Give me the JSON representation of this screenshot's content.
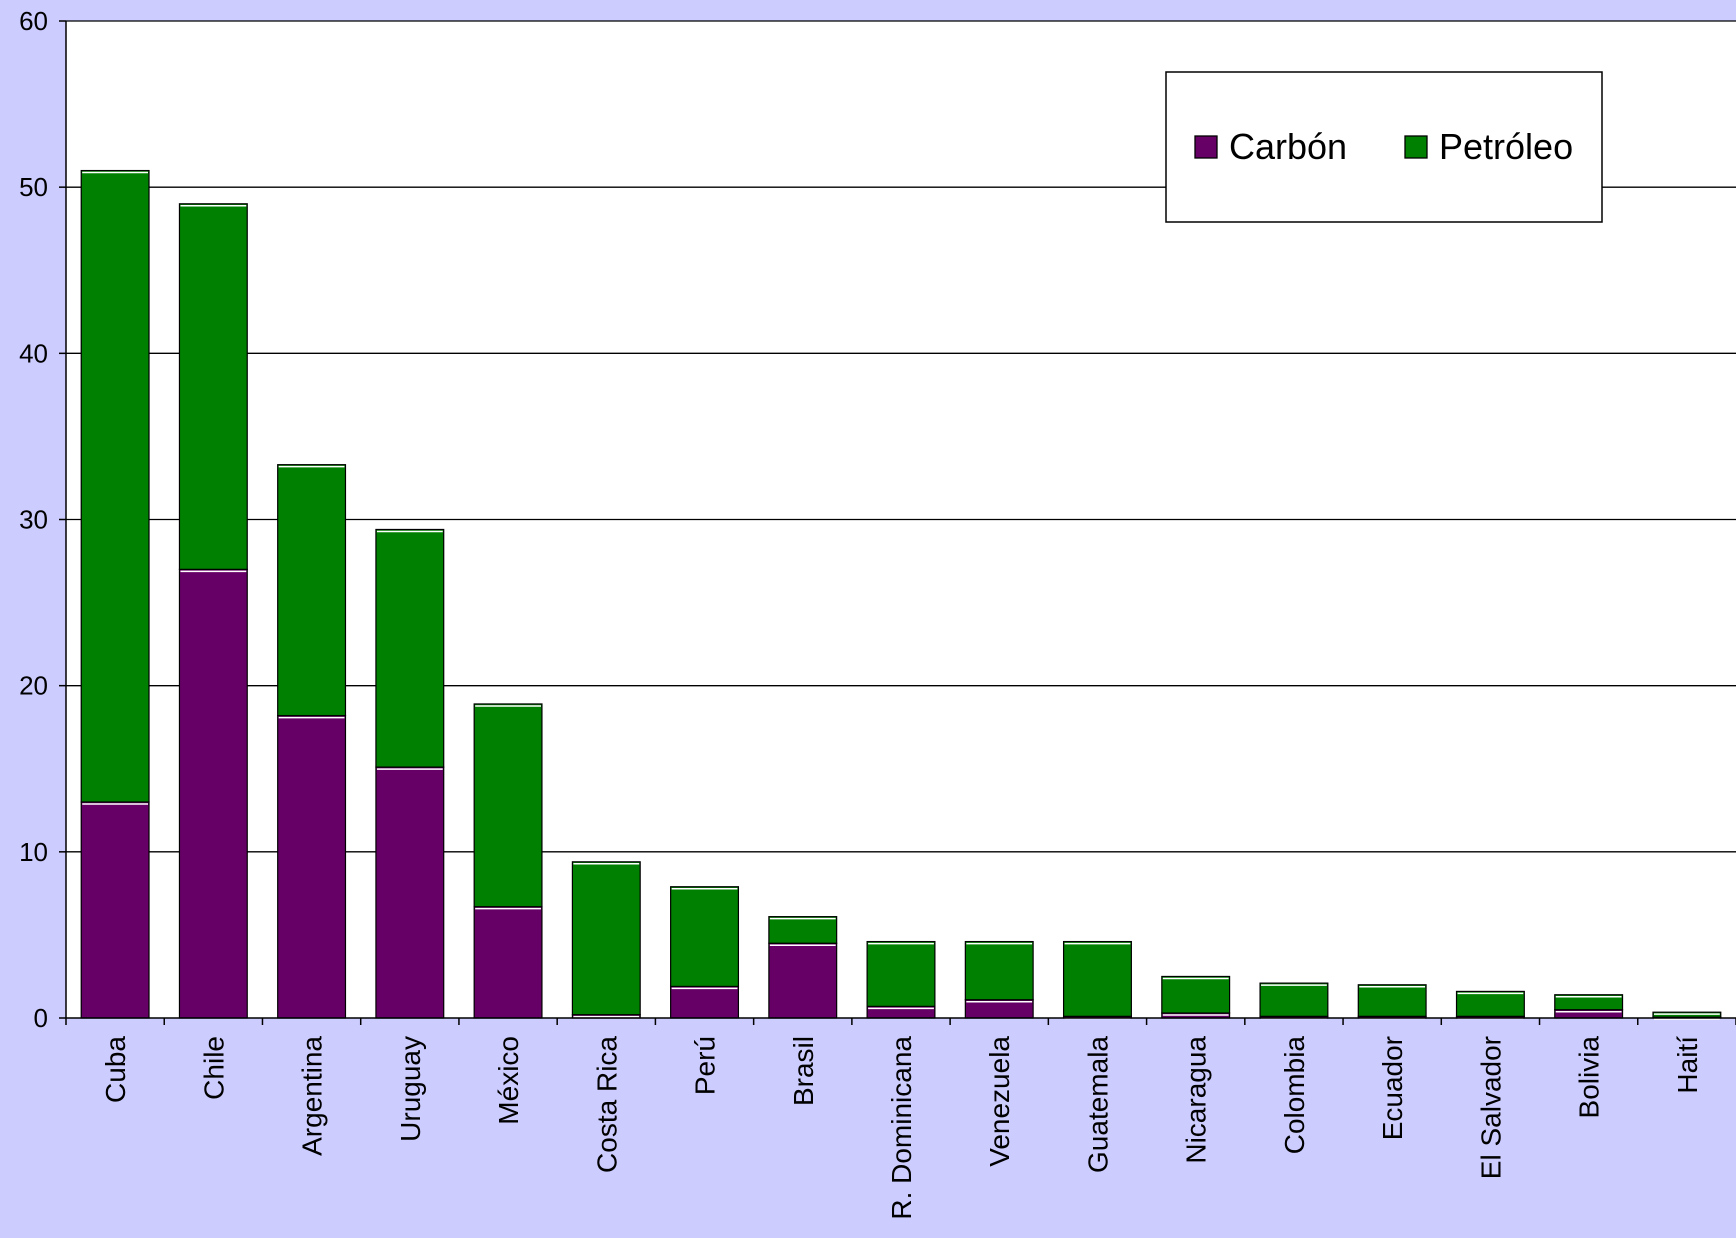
{
  "colors": {
    "background": "#ccccff",
    "plot_area": "#ffffff",
    "carbon": "#660066",
    "petroleo": "#008000",
    "gridline": "#000000"
  },
  "chart_data": {
    "type": "bar",
    "stacked": true,
    "title": "",
    "xlabel": "",
    "ylabel": "",
    "ylim": [
      0,
      60
    ],
    "yticks": [
      0,
      10,
      20,
      30,
      40,
      50,
      60
    ],
    "grid": true,
    "legend_position": "top-right",
    "categories": [
      "Cuba",
      "Chile",
      "Argentina",
      "Uruguay",
      "México",
      "Costa Rica",
      "Perú",
      "Brasil",
      "R. Dominicana",
      "Venezuela",
      "Guatemala",
      "Nicaragua",
      "Colombia",
      "Ecuador",
      "El Salvador",
      "Bolivia",
      "Haití"
    ],
    "series": [
      {
        "name": "Carbón",
        "color": "#660066",
        "values": [
          13.0,
          27.0,
          18.2,
          15.1,
          6.7,
          0.2,
          1.9,
          4.5,
          0.7,
          1.1,
          0.1,
          0.3,
          0.1,
          0.1,
          0.1,
          0.5,
          0.05
        ]
      },
      {
        "name": "Petróleo",
        "color": "#008000",
        "values": [
          38.0,
          22.0,
          15.1,
          14.3,
          12.2,
          9.2,
          6.0,
          1.6,
          3.9,
          3.5,
          4.5,
          2.2,
          2.0,
          1.9,
          1.5,
          0.9,
          0.3
        ]
      }
    ]
  }
}
